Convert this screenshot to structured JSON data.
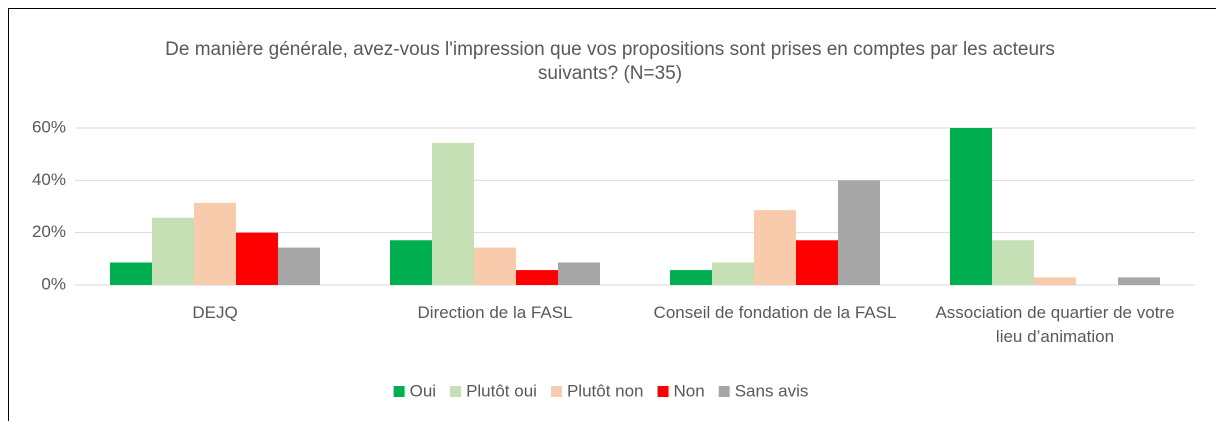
{
  "chart_data": {
    "type": "bar",
    "title": "De manière générale, avez-vous l'impression que vos propositions sont prises en comptes par les acteurs suivants?  (N=35)",
    "categories": [
      "DEJQ",
      "Direction de la FASL",
      "Conseil de fondation de la FASL",
      "Association de quartier de votre lieu d’animation"
    ],
    "series": [
      {
        "name": "Oui",
        "color": "#00b050",
        "values": [
          8.6,
          17.1,
          5.7,
          60
        ]
      },
      {
        "name": "Plutôt oui",
        "color": "#c5e0b4",
        "values": [
          25.7,
          54.3,
          8.6,
          17.1
        ]
      },
      {
        "name": "Plutôt non",
        "color": "#f8cbad",
        "values": [
          31.4,
          14.3,
          28.6,
          2.9
        ]
      },
      {
        "name": "Non",
        "color": "#ff0000",
        "values": [
          20,
          5.7,
          17.1,
          0
        ]
      },
      {
        "name": "Sans avis",
        "color": "#a6a6a6",
        "values": [
          14.3,
          8.6,
          40,
          2.9
        ]
      }
    ],
    "ylim": [
      0,
      60
    ],
    "yticks": [
      {
        "value": 0,
        "label": "0%"
      },
      {
        "value": 20,
        "label": "20%"
      },
      {
        "value": 40,
        "label": "40%"
      },
      {
        "value": 60,
        "label": "60%"
      }
    ],
    "grid": true,
    "legend": "bottom"
  }
}
